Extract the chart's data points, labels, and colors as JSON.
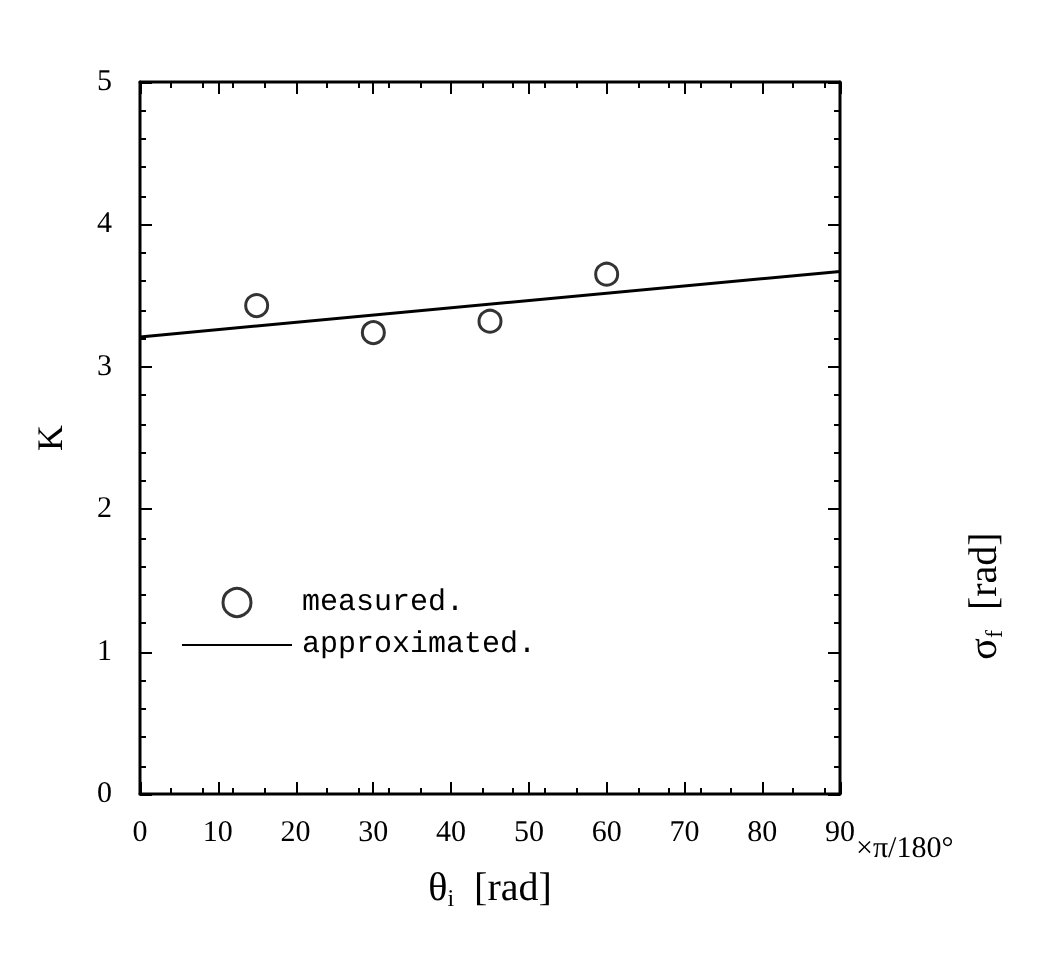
{
  "chart_data": {
    "type": "scatter",
    "xlabel": "θ$_{i}$  [rad]",
    "ylabel": "K",
    "series": [
      {
        "name": "measured.",
        "color": "#000000",
        "marker": "circle",
        "x": [
          15,
          30,
          45,
          60
        ],
        "values": [
          3.43,
          3.24,
          3.32,
          3.65
        ]
      },
      {
        "name": "approximated.",
        "type": "line",
        "color": "#000000",
        "line_style": "solid",
        "marker": "none",
        "x": [
          0,
          90
        ],
        "values": [
          3.21,
          3.67
        ]
      }
    ],
    "xlim": [
      0,
      90
    ],
    "xticks": [
      0,
      10,
      20,
      30,
      40,
      50,
      60,
      70,
      80,
      90
    ],
    "ylim": [
      0,
      5
    ],
    "yticks": [
      0,
      1,
      2,
      3,
      4,
      5
    ],
    "grid": false,
    "legend": "bottom left",
    "annotations": [
      "×π/180°",
      "σ$_{f}$  [rad]"
    ]
  }
}
